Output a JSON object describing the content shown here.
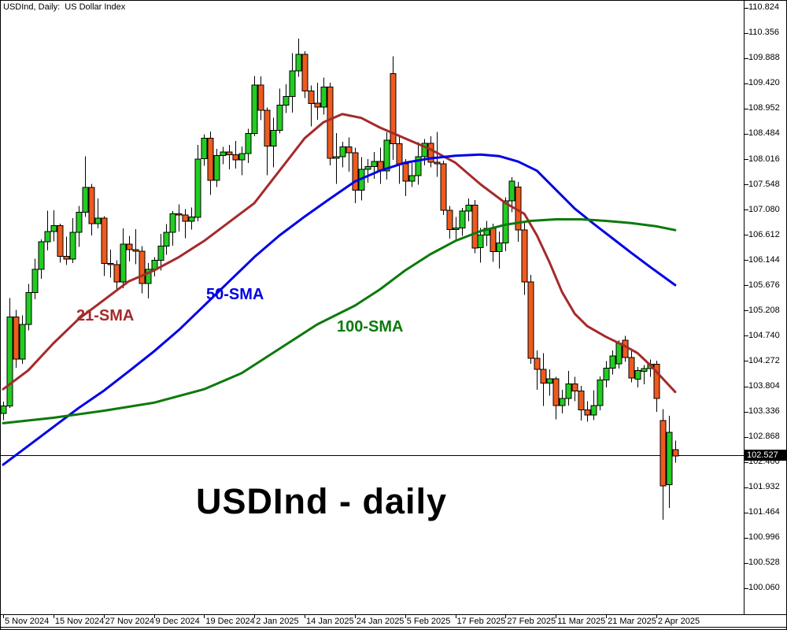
{
  "header": {
    "title": "USDInd, Daily:  US Dollar Index"
  },
  "annotations": {
    "sma21_label": "21-SMA",
    "sma50_label": "50-SMA",
    "sma100_label": "100-SMA",
    "big_title": "USDInd - daily"
  },
  "colors": {
    "background": "#FFFFFF",
    "frame": "#000000",
    "bull": "#22CC22",
    "bear": "#EF5A1E",
    "wick": "#000000",
    "sma21": "#A52A2A",
    "sma50": "#0000E6",
    "sma100": "#0B7A0B",
    "current_price_bg": "#000000",
    "current_price_text": "#FFFFFF"
  },
  "price_axis": {
    "current_price": "102.527",
    "ticks": [
      "110.824",
      "110.356",
      "109.888",
      "109.420",
      "108.952",
      "108.484",
      "108.016",
      "107.548",
      "107.080",
      "106.612",
      "106.144",
      "105.676",
      "105.208",
      "104.740",
      "104.272",
      "103.804",
      "103.336",
      "102.868",
      "102.400",
      "101.932",
      "101.464",
      "100.996",
      "100.528",
      "100.060"
    ]
  },
  "date_axis": {
    "ticks": [
      {
        "label": "5 Nov 2024",
        "bar": 0
      },
      {
        "label": "15 Nov 2024",
        "bar": 8
      },
      {
        "label": "27 Nov 2024",
        "bar": 16
      },
      {
        "label": "9 Dec 2024",
        "bar": 24
      },
      {
        "label": "19 Dec 2024",
        "bar": 32
      },
      {
        "label": "2 Jan 2025",
        "bar": 40
      },
      {
        "label": "14 Jan 2025",
        "bar": 48
      },
      {
        "label": "24 Jan 2025",
        "bar": 56
      },
      {
        "label": "5 Feb 2025",
        "bar": 64
      },
      {
        "label": "17 Feb 2025",
        "bar": 72
      },
      {
        "label": "27 Feb 2025",
        "bar": 80
      },
      {
        "label": "11 Mar 2025",
        "bar": 88
      },
      {
        "label": "21 Mar 2025",
        "bar": 96
      },
      {
        "label": "2 Apr 2025",
        "bar": 104
      }
    ]
  },
  "chart_data": {
    "type": "candlestick",
    "symbol": "USDInd",
    "timeframe": "Daily",
    "title": "USDInd - daily",
    "visible_price_range": [
      100.06,
      110.824
    ],
    "current_price": 102.527,
    "candles": [
      [
        103.3,
        103.52,
        103.18,
        103.44
      ],
      [
        103.44,
        105.44,
        103.4,
        105.09
      ],
      [
        105.09,
        105.22,
        104.15,
        104.31
      ],
      [
        104.31,
        105.12,
        104.22,
        104.95
      ],
      [
        104.95,
        105.7,
        104.84,
        105.54
      ],
      [
        105.54,
        106.17,
        105.42,
        105.97
      ],
      [
        105.97,
        106.53,
        105.8,
        106.48
      ],
      [
        106.48,
        107.06,
        106.32,
        106.67
      ],
      [
        106.67,
        107.07,
        106.49,
        106.78
      ],
      [
        106.78,
        106.82,
        106.1,
        106.21
      ],
      [
        106.21,
        106.58,
        106.05,
        106.16
      ],
      [
        106.16,
        106.92,
        106.09,
        106.66
      ],
      [
        106.66,
        107.15,
        106.39,
        107.03
      ],
      [
        107.03,
        108.07,
        106.94,
        107.49
      ],
      [
        107.49,
        107.56,
        106.6,
        106.82
      ],
      [
        106.82,
        107.29,
        106.73,
        106.92
      ],
      [
        106.92,
        106.96,
        105.85,
        106.08
      ],
      [
        106.08,
        106.34,
        105.82,
        106.06
      ],
      [
        106.06,
        106.14,
        105.61,
        105.74
      ],
      [
        105.74,
        106.73,
        105.62,
        106.44
      ],
      [
        106.44,
        106.59,
        106.12,
        106.34
      ],
      [
        106.34,
        106.72,
        106.07,
        106.31
      ],
      [
        106.31,
        106.4,
        105.53,
        105.71
      ],
      [
        105.71,
        106.09,
        105.43,
        105.97
      ],
      [
        105.97,
        106.2,
        105.84,
        106.14
      ],
      [
        106.14,
        106.63,
        105.95,
        106.4
      ],
      [
        106.4,
        106.81,
        106.24,
        106.66
      ],
      [
        106.66,
        107.05,
        106.41,
        107.0
      ],
      [
        107.0,
        107.18,
        106.67,
        106.98
      ],
      [
        106.98,
        107.09,
        106.55,
        106.86
      ],
      [
        106.86,
        107.12,
        106.71,
        106.94
      ],
      [
        106.94,
        108.28,
        106.86,
        108.02
      ],
      [
        108.02,
        108.48,
        107.89,
        108.4
      ],
      [
        108.4,
        108.53,
        107.35,
        107.62
      ],
      [
        107.62,
        108.21,
        107.5,
        108.08
      ],
      [
        108.08,
        108.24,
        107.92,
        108.15
      ],
      [
        108.15,
        108.28,
        107.83,
        108.1
      ],
      [
        108.1,
        108.35,
        107.84,
        108.0
      ],
      [
        108.0,
        108.25,
        107.72,
        108.12
      ],
      [
        108.12,
        108.58,
        107.94,
        108.49
      ],
      [
        108.49,
        109.56,
        108.44,
        109.39
      ],
      [
        109.39,
        109.55,
        108.74,
        108.92
      ],
      [
        108.92,
        108.97,
        107.72,
        108.26
      ],
      [
        108.26,
        108.78,
        107.86,
        108.55
      ],
      [
        108.55,
        109.32,
        108.49,
        109.02
      ],
      [
        109.02,
        109.4,
        108.87,
        109.18
      ],
      [
        109.18,
        109.98,
        108.88,
        109.65
      ],
      [
        109.65,
        110.25,
        109.54,
        109.96
      ],
      [
        109.96,
        110.02,
        109.15,
        109.28
      ],
      [
        109.28,
        109.38,
        108.62,
        109.05
      ],
      [
        109.05,
        109.43,
        108.75,
        108.98
      ],
      [
        108.98,
        109.53,
        108.84,
        109.35
      ],
      [
        109.35,
        109.43,
        107.9,
        108.03
      ],
      [
        108.03,
        108.5,
        107.56,
        108.06
      ],
      [
        108.06,
        108.34,
        107.86,
        108.24
      ],
      [
        108.24,
        108.42,
        107.78,
        108.13
      ],
      [
        108.13,
        108.23,
        107.2,
        107.44
      ],
      [
        107.44,
        108.05,
        107.25,
        107.83
      ],
      [
        107.83,
        108.02,
        107.58,
        107.88
      ],
      [
        107.88,
        108.15,
        107.65,
        107.97
      ],
      [
        107.97,
        108.23,
        107.56,
        107.8
      ],
      [
        107.8,
        108.51,
        107.64,
        108.37
      ],
      [
        109.6,
        109.92,
        108.0,
        108.3
      ],
      [
        108.3,
        108.44,
        107.56,
        107.93
      ],
      [
        107.93,
        108.02,
        107.33,
        107.61
      ],
      [
        107.61,
        107.94,
        107.5,
        107.71
      ],
      [
        107.71,
        108.33,
        107.54,
        108.06
      ],
      [
        108.06,
        108.39,
        107.9,
        108.31
      ],
      [
        108.31,
        108.44,
        107.86,
        107.96
      ],
      [
        107.96,
        108.52,
        107.69,
        107.93
      ],
      [
        107.93,
        107.99,
        106.98,
        107.07
      ],
      [
        107.07,
        107.15,
        106.54,
        106.71
      ],
      [
        106.71,
        106.94,
        106.53,
        106.74
      ],
      [
        106.74,
        107.11,
        106.59,
        107.05
      ],
      [
        107.05,
        107.29,
        106.86,
        107.16
      ],
      [
        107.16,
        107.26,
        106.27,
        106.37
      ],
      [
        106.37,
        106.74,
        106.1,
        106.61
      ],
      [
        106.61,
        106.87,
        106.4,
        106.73
      ],
      [
        106.73,
        106.82,
        106.11,
        106.3
      ],
      [
        106.3,
        106.67,
        105.99,
        106.46
      ],
      [
        106.46,
        107.31,
        106.31,
        107.24
      ],
      [
        107.24,
        107.68,
        107.03,
        107.61
      ],
      [
        107.5,
        107.59,
        106.48,
        106.7
      ],
      [
        106.7,
        106.87,
        105.5,
        105.74
      ],
      [
        105.74,
        105.87,
        104.22,
        104.32
      ],
      [
        104.32,
        104.47,
        103.74,
        104.12
      ],
      [
        104.12,
        104.42,
        103.44,
        103.86
      ],
      [
        103.86,
        104.12,
        103.63,
        103.94
      ],
      [
        103.94,
        103.98,
        103.19,
        103.45
      ],
      [
        103.45,
        103.74,
        103.3,
        103.58
      ],
      [
        103.58,
        104.09,
        103.45,
        103.85
      ],
      [
        103.85,
        103.98,
        103.53,
        103.72
      ],
      [
        103.72,
        103.81,
        103.17,
        103.37
      ],
      [
        103.37,
        103.53,
        103.15,
        103.27
      ],
      [
        103.27,
        103.73,
        103.18,
        103.45
      ],
      [
        103.45,
        103.99,
        103.36,
        103.92
      ],
      [
        103.92,
        104.27,
        103.78,
        104.14
      ],
      [
        104.14,
        104.47,
        104.02,
        104.37
      ],
      [
        104.22,
        104.66,
        104.13,
        104.6
      ],
      [
        104.66,
        104.74,
        104.26,
        104.34
      ],
      [
        104.34,
        104.47,
        103.88,
        103.96
      ],
      [
        103.94,
        104.16,
        103.78,
        104.1
      ],
      [
        104.08,
        104.2,
        103.84,
        104.13
      ],
      [
        104.13,
        104.3,
        103.98,
        104.21
      ],
      [
        104.21,
        104.28,
        103.33,
        103.58
      ],
      [
        103.17,
        103.38,
        101.33,
        101.96
      ],
      [
        101.98,
        103.26,
        101.55,
        102.95
      ],
      [
        102.63,
        102.8,
        102.39,
        102.51
      ]
    ],
    "smas": [
      {
        "period": 21,
        "name": "21-SMA",
        "color": "#A52A2A",
        "points": [
          [
            0,
            103.75
          ],
          [
            4,
            104.1
          ],
          [
            8,
            104.6
          ],
          [
            12,
            105.05
          ],
          [
            16,
            105.4
          ],
          [
            20,
            105.75
          ],
          [
            24,
            105.95
          ],
          [
            28,
            106.2
          ],
          [
            32,
            106.5
          ],
          [
            36,
            106.85
          ],
          [
            40,
            107.2
          ],
          [
            44,
            107.8
          ],
          [
            48,
            108.4
          ],
          [
            51,
            108.7
          ],
          [
            54,
            108.85
          ],
          [
            57,
            108.78
          ],
          [
            60,
            108.6
          ],
          [
            64,
            108.4
          ],
          [
            68,
            108.2
          ],
          [
            72,
            107.95
          ],
          [
            76,
            107.55
          ],
          [
            80,
            107.2
          ],
          [
            83,
            107.0
          ],
          [
            85,
            106.6
          ],
          [
            87,
            106.1
          ],
          [
            89,
            105.55
          ],
          [
            91,
            105.15
          ],
          [
            93,
            104.92
          ],
          [
            96,
            104.72
          ],
          [
            99,
            104.55
          ],
          [
            101,
            104.42
          ],
          [
            103,
            104.2
          ],
          [
            105,
            103.95
          ],
          [
            107,
            103.7
          ]
        ]
      },
      {
        "period": 50,
        "name": "50-SMA",
        "color": "#0000E6",
        "points": [
          [
            0,
            102.35
          ],
          [
            4,
            102.7
          ],
          [
            8,
            103.05
          ],
          [
            12,
            103.4
          ],
          [
            16,
            103.72
          ],
          [
            20,
            104.08
          ],
          [
            24,
            104.45
          ],
          [
            28,
            104.85
          ],
          [
            32,
            105.3
          ],
          [
            36,
            105.75
          ],
          [
            40,
            106.2
          ],
          [
            44,
            106.6
          ],
          [
            48,
            106.95
          ],
          [
            52,
            107.28
          ],
          [
            56,
            107.6
          ],
          [
            60,
            107.8
          ],
          [
            64,
            107.95
          ],
          [
            68,
            108.03
          ],
          [
            72,
            108.08
          ],
          [
            76,
            108.1
          ],
          [
            79,
            108.07
          ],
          [
            82,
            107.97
          ],
          [
            85,
            107.8
          ],
          [
            88,
            107.45
          ],
          [
            91,
            107.1
          ],
          [
            94,
            106.82
          ],
          [
            97,
            106.55
          ],
          [
            100,
            106.28
          ],
          [
            103,
            106.02
          ],
          [
            107,
            105.68
          ]
        ]
      },
      {
        "period": 100,
        "name": "100-SMA",
        "color": "#0B7A0B",
        "points": [
          [
            0,
            103.12
          ],
          [
            8,
            103.22
          ],
          [
            16,
            103.35
          ],
          [
            24,
            103.5
          ],
          [
            32,
            103.75
          ],
          [
            38,
            104.05
          ],
          [
            44,
            104.5
          ],
          [
            50,
            104.95
          ],
          [
            56,
            105.3
          ],
          [
            60,
            105.6
          ],
          [
            64,
            105.95
          ],
          [
            68,
            106.25
          ],
          [
            72,
            106.5
          ],
          [
            76,
            106.68
          ],
          [
            80,
            106.8
          ],
          [
            84,
            106.87
          ],
          [
            88,
            106.9
          ],
          [
            92,
            106.9
          ],
          [
            96,
            106.87
          ],
          [
            100,
            106.83
          ],
          [
            104,
            106.77
          ],
          [
            107,
            106.7
          ]
        ]
      }
    ]
  }
}
